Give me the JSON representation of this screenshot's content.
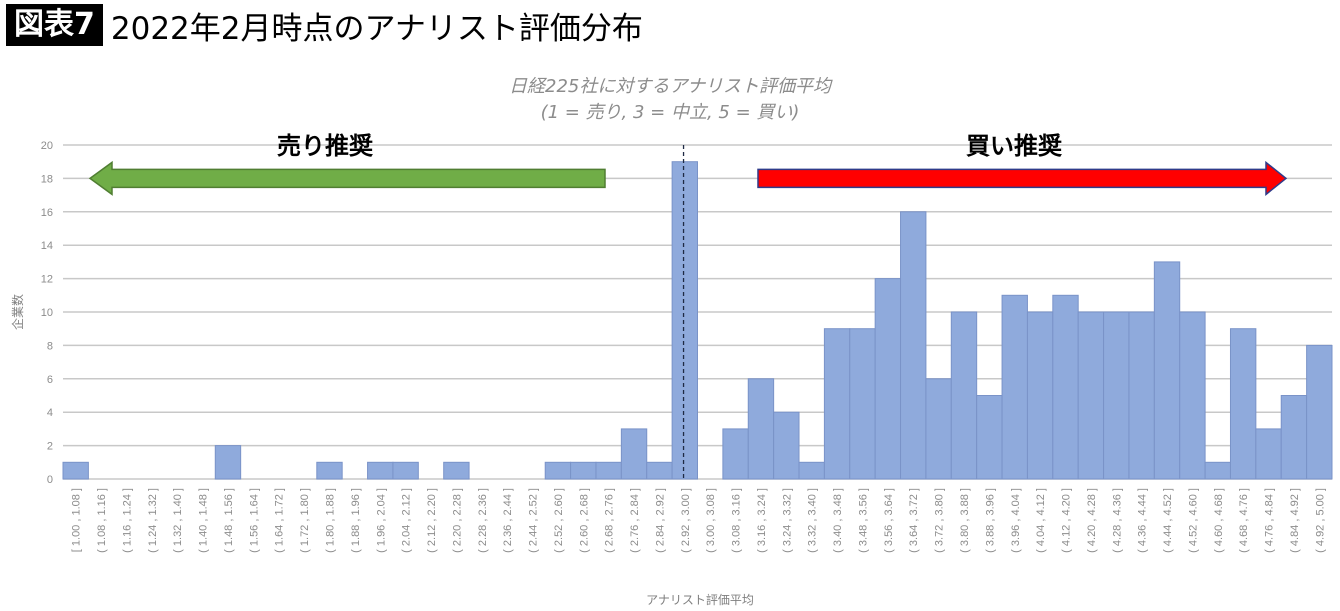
{
  "header": {
    "label": "図表7",
    "title": "2022年2月時点のアナリスト評価分布"
  },
  "chart_data": {
    "type": "bar",
    "title": "日経225社に対するアナリスト評価平均",
    "subtitle": "(1 = 売り, 3 = 中立, 5 = 買い)",
    "xlabel": "アナリスト評価平均",
    "ylabel": "企業数",
    "ylim": [
      0,
      20
    ],
    "yticks": [
      0,
      2,
      4,
      6,
      8,
      10,
      12,
      14,
      16,
      18,
      20
    ],
    "grid": true,
    "categories": [
      "[ 1.00 , 1.08 ]",
      "( 1.08 , 1.16 ]",
      "( 1.16 , 1.24 ]",
      "( 1.24 , 1.32 ]",
      "( 1.32 , 1.40 ]",
      "( 1.40 , 1.48 ]",
      "( 1.48 , 1.56 ]",
      "( 1.56 , 1.64 ]",
      "( 1.64 , 1.72 ]",
      "( 1.72 , 1.80 ]",
      "( 1.80 , 1.88 ]",
      "( 1.88 , 1.96 ]",
      "( 1.96 , 2.04 ]",
      "( 2.04 , 2.12 ]",
      "( 2.12 , 2.20 ]",
      "( 2.20 , 2.28 ]",
      "( 2.28 , 2.36 ]",
      "( 2.36 , 2.44 ]",
      "( 2.44 , 2.52 ]",
      "( 2.52 , 2.60 ]",
      "( 2.60 , 2.68 ]",
      "( 2.68 , 2.76 ]",
      "( 2.76 , 2.84 ]",
      "( 2.84 , 2.92 ]",
      "( 2.92 , 3.00 ]",
      "( 3.00 , 3.08 ]",
      "( 3.08 , 3.16 ]",
      "( 3.16 , 3.24 ]",
      "( 3.24 , 3.32 ]",
      "( 3.32 , 3.40 ]",
      "( 3.40 , 3.48 ]",
      "( 3.48 , 3.56 ]",
      "( 3.56 , 3.64 ]",
      "( 3.64 , 3.72 ]",
      "( 3.72 , 3.80 ]",
      "( 3.80 , 3.88 ]",
      "( 3.88 , 3.96 ]",
      "( 3.96 , 4.04 ]",
      "( 4.04 , 4.12 ]",
      "( 4.12 , 4.20 ]",
      "( 4.20 , 4.28 ]",
      "( 4.28 , 4.36 ]",
      "( 4.36 , 4.44 ]",
      "( 4.44 , 4.52 ]",
      "( 4.52 , 4.60 ]",
      "( 4.60 , 4.68 ]",
      "( 4.68 , 4.76 ]",
      "( 4.76 , 4.84 ]",
      "( 4.84 , 4.92 ]",
      "( 4.92 , 5.00 ]"
    ],
    "values": [
      1,
      0,
      0,
      0,
      0,
      0,
      2,
      0,
      0,
      0,
      1,
      0,
      1,
      1,
      0,
      1,
      0,
      0,
      0,
      1,
      1,
      1,
      3,
      1,
      19,
      0,
      3,
      6,
      4,
      1,
      9,
      9,
      12,
      16,
      6,
      10,
      5,
      11,
      10,
      11,
      10,
      10,
      10,
      13,
      10,
      1,
      9,
      3,
      5,
      8
    ],
    "bar_color": "#8faadc",
    "reference_line": {
      "x": 3.0,
      "style": "dashed"
    },
    "annotations": [
      {
        "text": "売り推奨",
        "arrow": "left",
        "color": "#70ad47"
      },
      {
        "text": "買い推奨",
        "arrow": "right",
        "color": "#ff0000"
      }
    ]
  }
}
